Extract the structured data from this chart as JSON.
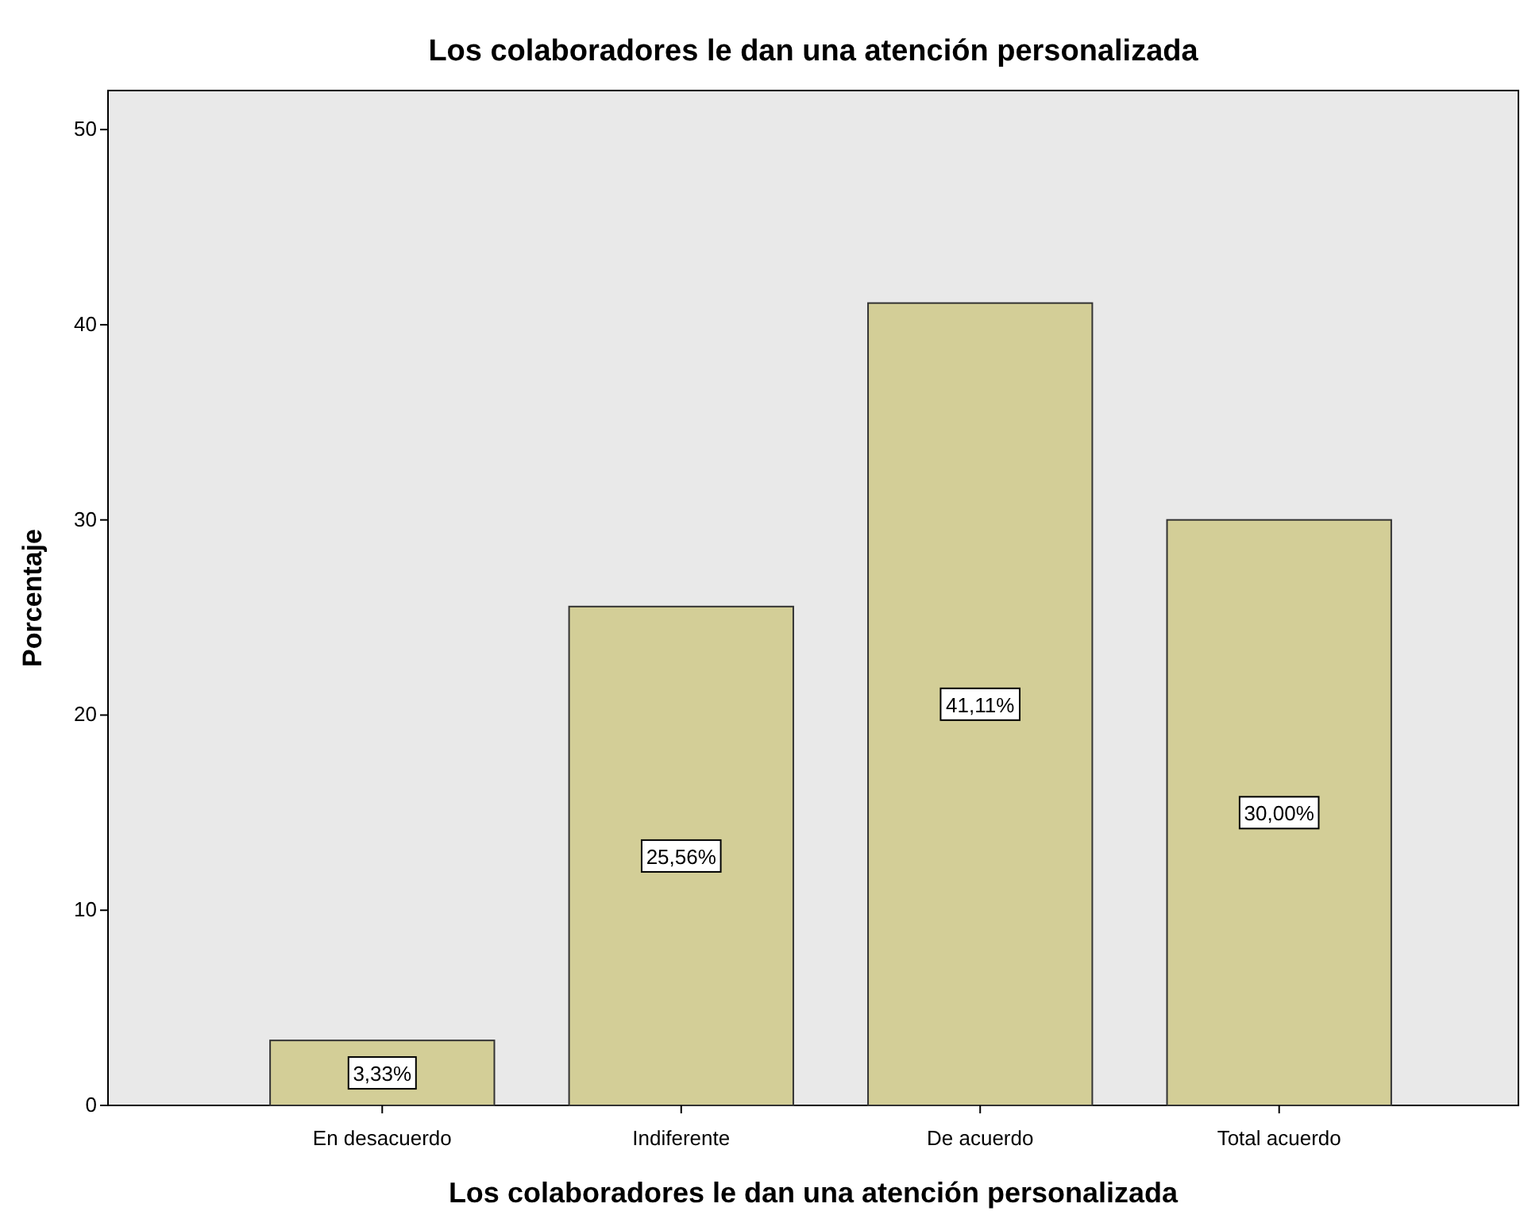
{
  "chart_data": {
    "type": "bar",
    "title": "Los colaboradores le dan una atención personalizada",
    "xlabel": "Los colaboradores le dan una atención personalizada",
    "ylabel": "Porcentaje",
    "categories": [
      "En desacuerdo",
      "Indiferente",
      "De acuerdo",
      "Total acuerdo"
    ],
    "values": [
      3.33,
      25.56,
      41.11,
      30.0
    ],
    "value_labels": [
      "3,33%",
      "25,56%",
      "41,11%",
      "30,00%"
    ],
    "color": "#d3ce97",
    "ylim": [
      0,
      52
    ],
    "yticks": [
      0,
      10,
      20,
      30,
      40,
      50
    ],
    "grid": false
  }
}
